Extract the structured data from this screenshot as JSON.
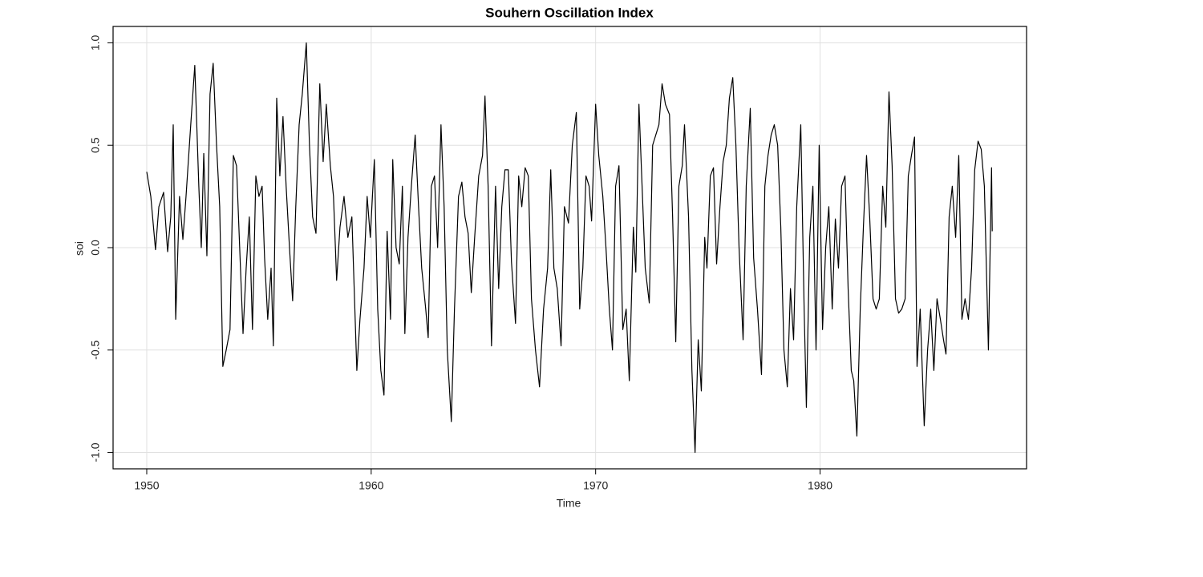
{
  "chart_data": {
    "type": "line",
    "title": "Souhern Oscillation Index",
    "xlabel": "Time",
    "ylabel": "soi",
    "color": "#000000",
    "grid": true,
    "xlim": [
      1948.5,
      1989.2
    ],
    "ylim": [
      -1.08,
      1.08
    ],
    "xticks": [
      1950,
      1960,
      1970,
      1980
    ],
    "yticks": [
      {
        "value": -1,
        "label": "-1.0"
      },
      -0.5,
      {
        "value": 0,
        "label": "0.0"
      },
      0.5,
      {
        "value": 1,
        "label": "1.0"
      }
    ],
    "x": [
      1950,
      1950.18,
      1950.39,
      1950.54,
      1950.75,
      1950.93,
      1951.07,
      1951.18,
      1951.29,
      1951.46,
      1951.61,
      1951.75,
      1951.96,
      1952.14,
      1952.32,
      1952.43,
      1952.54,
      1952.68,
      1952.82,
      1952.96,
      1953.11,
      1953.25,
      1953.39,
      1953.54,
      1953.71,
      1953.86,
      1954,
      1954.14,
      1954.29,
      1954.43,
      1954.57,
      1954.71,
      1954.86,
      1955,
      1955.14,
      1955.25,
      1955.39,
      1955.54,
      1955.64,
      1955.79,
      1955.93,
      1956.07,
      1956.21,
      1956.36,
      1956.5,
      1956.64,
      1956.79,
      1956.93,
      1957.11,
      1957.25,
      1957.39,
      1957.54,
      1957.71,
      1957.86,
      1958,
      1958.18,
      1958.32,
      1958.46,
      1958.61,
      1958.79,
      1958.96,
      1959.14,
      1959.36,
      1959.5,
      1959.68,
      1959.82,
      1959.96,
      1960.14,
      1960.29,
      1960.43,
      1960.57,
      1960.71,
      1960.86,
      1960.96,
      1961.11,
      1961.25,
      1961.39,
      1961.5,
      1961.64,
      1961.79,
      1961.96,
      1962.11,
      1962.25,
      1962.43,
      1962.54,
      1962.68,
      1962.82,
      1962.96,
      1963.11,
      1963.25,
      1963.39,
      1963.57,
      1963.71,
      1963.89,
      1964.04,
      1964.18,
      1964.32,
      1964.46,
      1964.61,
      1964.79,
      1964.96,
      1965.07,
      1965.21,
      1965.36,
      1965.54,
      1965.68,
      1965.82,
      1965.96,
      1966.11,
      1966.25,
      1966.43,
      1966.57,
      1966.71,
      1966.86,
      1967,
      1967.14,
      1967.32,
      1967.5,
      1967.68,
      1967.86,
      1968,
      1968.14,
      1968.29,
      1968.46,
      1968.61,
      1968.79,
      1968.96,
      1969.14,
      1969.29,
      1969.43,
      1969.57,
      1969.71,
      1969.82,
      1970,
      1970.14,
      1970.32,
      1970.46,
      1970.61,
      1970.75,
      1970.89,
      1971.04,
      1971.21,
      1971.36,
      1971.5,
      1971.68,
      1971.79,
      1971.93,
      1972.07,
      1972.21,
      1972.39,
      1972.54,
      1972.68,
      1972.82,
      1972.96,
      1973.11,
      1973.29,
      1973.43,
      1973.57,
      1973.71,
      1973.86,
      1973.96,
      1974.14,
      1974.29,
      1974.43,
      1974.57,
      1974.71,
      1974.86,
      1974.96,
      1975.11,
      1975.25,
      1975.39,
      1975.54,
      1975.68,
      1975.82,
      1975.96,
      1976.11,
      1976.25,
      1976.39,
      1976.57,
      1976.71,
      1976.89,
      1977.04,
      1977.21,
      1977.39,
      1977.54,
      1977.68,
      1977.82,
      1977.96,
      1978.11,
      1978.25,
      1978.39,
      1978.54,
      1978.68,
      1978.82,
      1978.96,
      1979.14,
      1979.29,
      1979.39,
      1979.54,
      1979.68,
      1979.82,
      1979.96,
      1980.11,
      1980.25,
      1980.39,
      1980.54,
      1980.68,
      1980.82,
      1980.96,
      1981.11,
      1981.25,
      1981.39,
      1981.5,
      1981.64,
      1981.79,
      1981.93,
      1982.07,
      1982.21,
      1982.36,
      1982.5,
      1982.64,
      1982.79,
      1982.93,
      1983.07,
      1983.21,
      1983.36,
      1983.5,
      1983.64,
      1983.79,
      1983.93,
      1984.07,
      1984.21,
      1984.32,
      1984.46,
      1984.64,
      1984.79,
      1984.93,
      1985.07,
      1985.21,
      1985.36,
      1985.5,
      1985.61,
      1985.75,
      1985.89,
      1986.04,
      1986.18,
      1986.32,
      1986.46,
      1986.61,
      1986.75,
      1986.89,
      1987.04,
      1987.18,
      1987.32,
      1987.5,
      1987.64,
      1987.67
    ],
    "values": [
      0.37,
      0.25,
      -0.01,
      0.2,
      0.27,
      -0.02,
      0.15,
      0.6,
      -0.35,
      0.25,
      0.04,
      0.25,
      0.6,
      0.89,
      0.3,
      0,
      0.46,
      -0.04,
      0.75,
      0.9,
      0.5,
      0.2,
      -0.58,
      -0.5,
      -0.4,
      0.45,
      0.4,
      0,
      -0.42,
      -0.1,
      0.15,
      -0.4,
      0.35,
      0.25,
      0.3,
      -0.05,
      -0.35,
      -0.1,
      -0.48,
      0.73,
      0.35,
      0.64,
      0.3,
      0,
      -0.26,
      0.2,
      0.6,
      0.75,
      1,
      0.5,
      0.15,
      0.07,
      0.8,
      0.42,
      0.7,
      0.4,
      0.25,
      -0.16,
      0.1,
      0.25,
      0.05,
      0.15,
      -0.6,
      -0.35,
      -0.1,
      0.25,
      0.05,
      0.43,
      -0.3,
      -0.6,
      -0.72,
      0.08,
      -0.35,
      0.43,
      0,
      -0.08,
      0.3,
      -0.42,
      0.05,
      0.3,
      0.55,
      0.2,
      -0.1,
      -0.3,
      -0.44,
      0.3,
      0.35,
      0,
      0.6,
      0.2,
      -0.5,
      -0.85,
      -0.3,
      0.25,
      0.32,
      0.15,
      0.07,
      -0.22,
      0.05,
      0.35,
      0.45,
      0.74,
      0.3,
      -0.48,
      0.3,
      -0.2,
      0.2,
      0.38,
      0.38,
      -0.07,
      -0.37,
      0.35,
      0.2,
      0.39,
      0.35,
      -0.25,
      -0.5,
      -0.68,
      -0.3,
      -0.1,
      0.38,
      -0.1,
      -0.2,
      -0.48,
      0.2,
      0.12,
      0.5,
      0.66,
      -0.3,
      -0.1,
      0.35,
      0.3,
      0.13,
      0.7,
      0.45,
      0.25,
      0,
      -0.3,
      -0.5,
      0.3,
      0.4,
      -0.4,
      -0.3,
      -0.65,
      0.1,
      -0.12,
      0.7,
      0.3,
      -0.1,
      -0.27,
      0.5,
      0.55,
      0.6,
      0.8,
      0.7,
      0.65,
      0.15,
      -0.46,
      0.3,
      0.4,
      0.6,
      0.15,
      -0.6,
      -1,
      -0.45,
      -0.7,
      0.05,
      -0.1,
      0.35,
      0.39,
      -0.08,
      0.2,
      0.42,
      0.5,
      0.73,
      0.83,
      0.5,
      0,
      -0.45,
      0.3,
      0.68,
      -0.05,
      -0.3,
      -0.62,
      0.3,
      0.45,
      0.55,
      0.6,
      0.5,
      0.1,
      -0.5,
      -0.68,
      -0.2,
      -0.45,
      0.2,
      0.6,
      -0.3,
      -0.78,
      0.05,
      0.3,
      -0.5,
      0.5,
      -0.4,
      0,
      0.2,
      -0.3,
      0.14,
      -0.1,
      0.3,
      0.35,
      -0.2,
      -0.6,
      -0.65,
      -0.92,
      -0.3,
      0.1,
      0.45,
      0.15,
      -0.25,
      -0.3,
      -0.25,
      0.3,
      0.1,
      0.76,
      0.4,
      -0.25,
      -0.32,
      -0.3,
      -0.25,
      0.35,
      0.45,
      0.54,
      -0.58,
      -0.3,
      -0.87,
      -0.5,
      -0.3,
      -0.6,
      -0.25,
      -0.35,
      -0.45,
      -0.52,
      0.15,
      0.3,
      0.05,
      0.45,
      -0.35,
      -0.25,
      -0.35,
      -0.1,
      0.38,
      0.52,
      0.48,
      0.3,
      -0.5,
      0.39,
      0.08
    ]
  }
}
